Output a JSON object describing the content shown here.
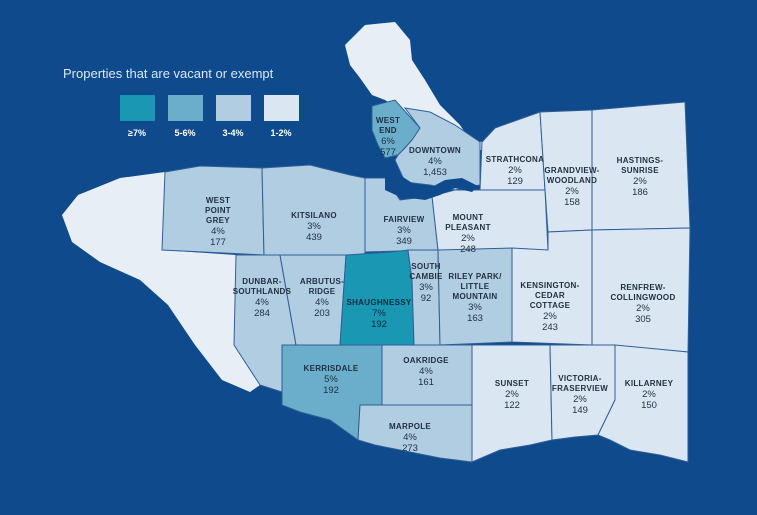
{
  "legend": {
    "title": "Properties that are vacant or exempt",
    "items": [
      {
        "label": "≥7%",
        "color": "#1a97b3"
      },
      {
        "label": "5-6%",
        "color": "#6aaecb"
      },
      {
        "label": "3-4%",
        "color": "#b1cde2"
      },
      {
        "label": "1-2%",
        "color": "#dae7f2"
      }
    ]
  },
  "colors": {
    "background": "#0e4a8c",
    "land": "#e8eef5",
    "border": "#2f5f96"
  },
  "neighbourhoods": [
    {
      "id": "west-end",
      "name_lines": [
        "WEST",
        "END"
      ],
      "percent": "6%",
      "count": "577"
    },
    {
      "id": "downtown",
      "name_lines": [
        "DOWNTOWN"
      ],
      "percent": "4%",
      "count": "1,453"
    },
    {
      "id": "strathcona",
      "name_lines": [
        "STRATHCONA"
      ],
      "percent": "2%",
      "count": "129"
    },
    {
      "id": "grandview-woodland",
      "name_lines": [
        "GRANDVIEW-",
        "WOODLAND"
      ],
      "percent": "2%",
      "count": "158"
    },
    {
      "id": "hastings-sunrise",
      "name_lines": [
        "HASTINGS-",
        "SUNRISE"
      ],
      "percent": "2%",
      "count": "186"
    },
    {
      "id": "west-point-grey",
      "name_lines": [
        "WEST",
        "POINT",
        "GREY"
      ],
      "percent": "4%",
      "count": "177"
    },
    {
      "id": "kitsilano",
      "name_lines": [
        "KITSILANO"
      ],
      "percent": "3%",
      "count": "439"
    },
    {
      "id": "fairview",
      "name_lines": [
        "FAIRVIEW"
      ],
      "percent": "3%",
      "count": "349"
    },
    {
      "id": "mount-pleasant",
      "name_lines": [
        "MOUNT",
        "PLEASANT"
      ],
      "percent": "2%",
      "count": "248"
    },
    {
      "id": "dunbar-southlands",
      "name_lines": [
        "DUNBAR-",
        "SOUTHLANDS"
      ],
      "percent": "4%",
      "count": "284"
    },
    {
      "id": "arbutus-ridge",
      "name_lines": [
        "ARBUTUS-",
        "RIDGE"
      ],
      "percent": "4%",
      "count": "203"
    },
    {
      "id": "shaughnessy",
      "name_lines": [
        "SHAUGHNESSY"
      ],
      "percent": "7%",
      "count": "192"
    },
    {
      "id": "south-cambie",
      "name_lines": [
        "SOUTH",
        "CAMBIE"
      ],
      "percent": "3%",
      "count": "92"
    },
    {
      "id": "riley-park",
      "name_lines": [
        "RILEY PARK/",
        "LITTLE",
        "MOUNTAIN"
      ],
      "percent": "3%",
      "count": "163"
    },
    {
      "id": "kensington-cedar-cottage",
      "name_lines": [
        "KENSINGTON-",
        "CEDAR",
        "COTTAGE"
      ],
      "percent": "2%",
      "count": "243"
    },
    {
      "id": "renfrew-collingwood",
      "name_lines": [
        "RENFREW-",
        "COLLINGWOOD"
      ],
      "percent": "2%",
      "count": "305"
    },
    {
      "id": "kerrisdale",
      "name_lines": [
        "KERRISDALE"
      ],
      "percent": "5%",
      "count": "192"
    },
    {
      "id": "oakridge",
      "name_lines": [
        "OAKRIDGE"
      ],
      "percent": "4%",
      "count": "161"
    },
    {
      "id": "sunset",
      "name_lines": [
        "SUNSET"
      ],
      "percent": "2%",
      "count": "122"
    },
    {
      "id": "victoria-fraserview",
      "name_lines": [
        "VICTORIA-",
        "FRASERVIEW"
      ],
      "percent": "2%",
      "count": "149"
    },
    {
      "id": "killarney",
      "name_lines": [
        "KILLARNEY"
      ],
      "percent": "2%",
      "count": "150"
    },
    {
      "id": "marpole",
      "name_lines": [
        "MARPOLE"
      ],
      "percent": "4%",
      "count": "273"
    }
  ]
}
